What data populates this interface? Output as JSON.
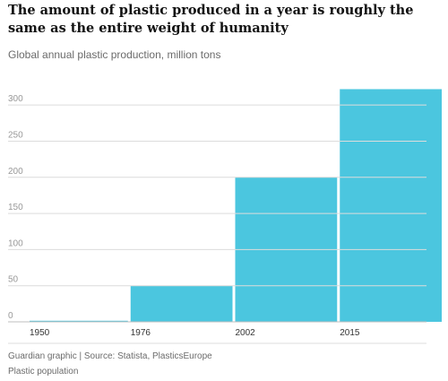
{
  "chart_data": {
    "type": "bar",
    "title": "The amount of plastic produced in a year is roughly the same as the entire weight of humanity",
    "subtitle": "Global annual plastic production, million tons",
    "categories": [
      "1950",
      "1976",
      "2002",
      "2015"
    ],
    "values": [
      1.5,
      50,
      200,
      322
    ],
    "ylim": [
      0,
      330
    ],
    "yticks": [
      0,
      50,
      100,
      150,
      200,
      250,
      300
    ],
    "grid": true,
    "bar_color": "#4bc6df",
    "grid_color": "#dcdcdc"
  },
  "footer": {
    "source": "Guardian graphic | Source: Statista, PlasticsEurope",
    "caption": "Plastic population"
  }
}
